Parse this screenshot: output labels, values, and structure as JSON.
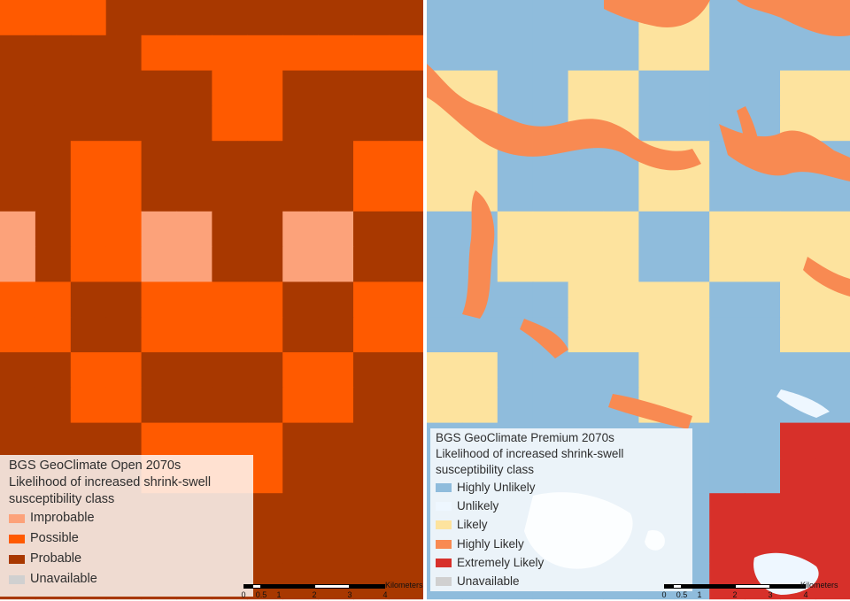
{
  "colors": {
    "open_improbable": "#fca27a",
    "open_possible": "#ff5a00",
    "open_probable": "#a83800",
    "unavailable": "#d0d0d0",
    "premium_highly_unlikely": "#8fbcdc",
    "premium_unlikely": "#eef7ff",
    "premium_likely": "#fde39e",
    "premium_highly_likely": "#f88a52",
    "premium_extremely_likely": "#d7302a"
  },
  "left_map": {
    "legend": {
      "title_line1": "BGS GeoClimate Open 2070s",
      "title_line2": "Likelihood of increased shrink-swell",
      "title_line3": "susceptibility class",
      "items": [
        {
          "label": "Improbable",
          "color": "#fca27a"
        },
        {
          "label": "Possible",
          "color": "#ff5a00"
        },
        {
          "label": "Probable",
          "color": "#a83800"
        },
        {
          "label": "Unavailable",
          "color": "#d0d0d0"
        }
      ]
    },
    "grid": [
      "PPPBBBBBBBBB",
      "BBBBPPPPPPPP",
      "BBBBBBPPBBBB",
      "BBBBBBPPBBBB",
      "BBPPBBBBBBPP",
      "BBPPBBBBBBPP",
      "IBPPIIBBIIBB",
      "IBPPIIBBIIBB",
      "PPBBPPPPBBPP",
      "PPBBPPPPBBPP",
      "BBPPBBBBPPBB",
      "BBPPBBBBPPBB",
      "BBBBPPPPBBBB",
      "BBBBPPPPBBBB",
      "BBBBBBBBBBBB",
      "BBBBBBBBBBBB",
      "BBBBBBBBBBBB"
    ],
    "scale": {
      "ticks": [
        "0",
        "0.5",
        "1",
        "2",
        "3",
        "4"
      ],
      "unit": "Kilometers"
    }
  },
  "right_map": {
    "legend": {
      "title_line1": "BGS GeoClimate Premium 2070s",
      "title_line2": "Likelihood of increased shrink-swell",
      "title_line3": "susceptibility class",
      "items": [
        {
          "label": "Highly Unlikely",
          "color": "#8fbcdc"
        },
        {
          "label": "Unlikely",
          "color": "#eef7ff"
        },
        {
          "label": "Likely",
          "color": "#fde39e"
        },
        {
          "label": "Highly Likely",
          "color": "#f88a52"
        },
        {
          "label": "Extremely Likely",
          "color": "#d7302a"
        },
        {
          "label": "Unavailable",
          "color": "#d0d0d0"
        }
      ]
    },
    "grid": [
      "UUUUUUHHUUUU",
      "UUUUUUHHUUUU",
      "HHUUHHUUUUHH",
      "HHUUHHUUUUHH",
      "HHUUUUHHUUUU",
      "HHUUUUHHUUUU",
      "UUHHHHUUHHHH",
      "UUHHHHUUHHHH",
      "UUUUHHHHUUHH",
      "UUUUHHHHUUHH",
      "HHUUUUHHUUUU",
      "HHUUUUHHUUUU",
      "UUUUUUUUUUEE",
      "UUUUUUUUUUEE",
      "UUUUUUUUEEEE",
      "UUUUUUUUEEEE",
      "UUUUUUUUEEEE"
    ],
    "scale": {
      "ticks": [
        "0",
        "0.5",
        "1",
        "2",
        "3",
        "4"
      ],
      "unit": "Kilometers"
    }
  }
}
